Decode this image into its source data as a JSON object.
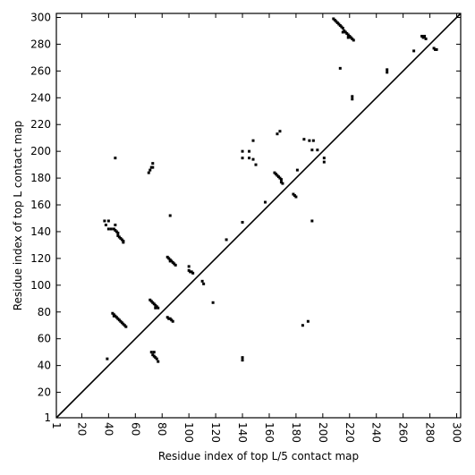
{
  "chart_data": {
    "type": "scatter",
    "xlabel": "Residue index of top L/5 contact map",
    "ylabel": "Residue index of top L contact map",
    "xlim": [
      1,
      303
    ],
    "ylim": [
      1,
      303
    ],
    "xticks": [
      1,
      20,
      40,
      60,
      80,
      100,
      120,
      140,
      160,
      180,
      200,
      220,
      240,
      260,
      280,
      300
    ],
    "yticks": [
      1,
      20,
      40,
      60,
      80,
      100,
      120,
      140,
      160,
      180,
      200,
      220,
      240,
      260,
      280,
      300
    ],
    "color": "#000000",
    "diagonal": true,
    "x": [
      208,
      209,
      210,
      211,
      212,
      213,
      214,
      215,
      216,
      217,
      218,
      219,
      220,
      221,
      222,
      223,
      215,
      219,
      40,
      42,
      44,
      45,
      46,
      47,
      47,
      48,
      49,
      50,
      51,
      51,
      37,
      40,
      38,
      45,
      43,
      44,
      45,
      46,
      47,
      48,
      49,
      50,
      51,
      52,
      53,
      44,
      71,
      72,
      73,
      74,
      75,
      76,
      77,
      75,
      72,
      74,
      73,
      74,
      75,
      76,
      77,
      84,
      85,
      86,
      87,
      88,
      89,
      90,
      86,
      84,
      85,
      86,
      87,
      88,
      100,
      100,
      101,
      102,
      103,
      164,
      165,
      166,
      167,
      168,
      169,
      169,
      170,
      178,
      179,
      180,
      274,
      275,
      276,
      277,
      283,
      284,
      285,
      213,
      248,
      248,
      222,
      222,
      268,
      45,
      70,
      71,
      72,
      73,
      73,
      39,
      86,
      110,
      111,
      118,
      128,
      140,
      140,
      140,
      140,
      145,
      140,
      145,
      148,
      150,
      148,
      157,
      166,
      168,
      181,
      186,
      190,
      193,
      192,
      196,
      201,
      201,
      192,
      185,
      189
    ],
    "y": [
      299,
      298,
      297,
      296,
      295,
      294,
      293,
      292,
      290,
      289,
      288,
      287,
      286,
      285,
      284,
      283,
      289,
      285,
      142,
      142,
      142,
      141,
      140,
      139,
      137,
      136,
      135,
      134,
      133,
      132,
      148,
      148,
      145,
      145,
      79,
      78,
      77,
      76,
      75,
      74,
      73,
      72,
      71,
      70,
      69,
      77,
      89,
      88,
      87,
      86,
      85,
      84,
      83,
      83,
      50,
      50,
      48,
      47,
      46,
      45,
      43,
      121,
      120,
      119,
      118,
      117,
      116,
      115,
      118,
      76,
      75,
      75,
      74,
      73,
      114,
      111,
      110,
      110,
      109,
      184,
      183,
      182,
      181,
      180,
      179,
      177,
      176,
      168,
      167,
      166,
      286,
      285,
      286,
      284,
      277,
      276,
      276,
      262,
      261,
      259,
      241,
      239,
      275,
      195,
      184,
      186,
      188,
      188,
      191,
      45,
      152,
      103,
      101,
      87,
      134,
      147,
      46,
      44,
      200,
      200,
      195,
      195,
      194,
      190,
      208,
      162,
      213,
      215,
      186,
      209,
      208,
      208,
      201,
      201,
      195,
      192,
      148,
      70,
      73
    ]
  }
}
